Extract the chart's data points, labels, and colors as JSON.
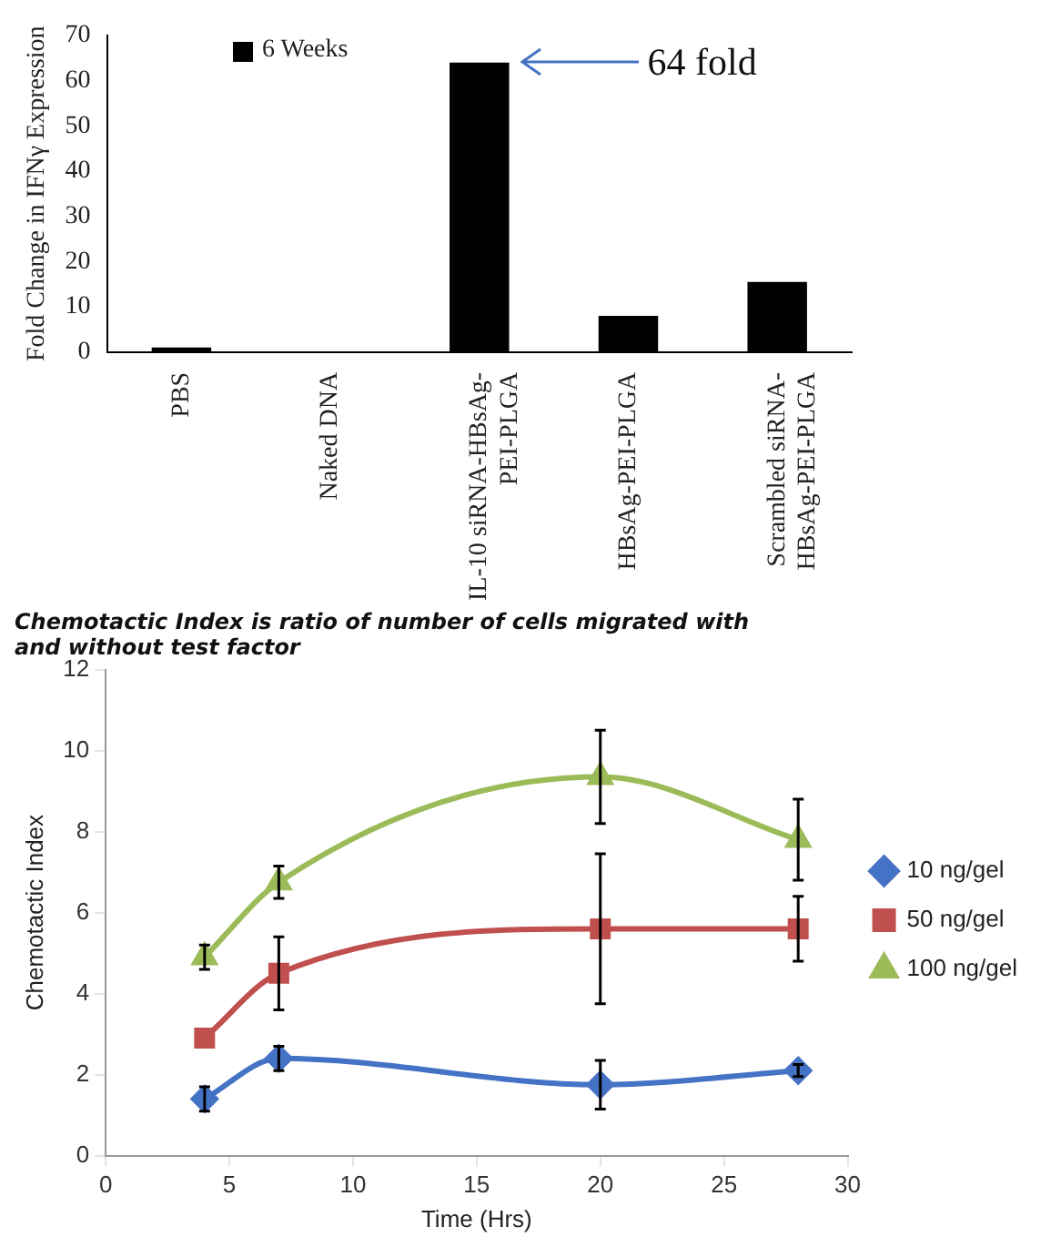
{
  "chart_data": [
    {
      "type": "bar",
      "categories": [
        "PBS",
        "Naked DNA",
        "IL-10 siRNA-HBsAg-PEI-PLGA",
        "HBsAg-PEI-PLGA",
        "Scrambled siRNA-HBsAg-PEI-PLGA"
      ],
      "ylabel": "Fold Change in IFNγ Expression",
      "series": [
        {
          "name": "6 Weeks",
          "color": "#000000",
          "values": [
            1,
            0,
            64,
            8,
            15.5
          ]
        }
      ],
      "ylim": [
        0,
        70
      ],
      "yticks": [
        0,
        10,
        20,
        30,
        40,
        50,
        60,
        70
      ],
      "grid": false,
      "legend": "top left",
      "annotations": [
        "64 fold"
      ]
    },
    {
      "type": "line",
      "title": "Chemotactic Index is ratio of number of cells migrated with and without test factor",
      "xlabel": "Time (Hrs)",
      "ylabel": "Chemotactic Index",
      "series": [
        {
          "name": "10 ng/gel",
          "color": "#4472c4",
          "marker": "diamond",
          "x": [
            4,
            7,
            20,
            28
          ],
          "values": [
            1.4,
            2.4,
            1.75,
            2.1
          ],
          "errors": [
            0.3,
            0.3,
            0.6,
            0.15
          ]
        },
        {
          "name": "50 ng/gel",
          "color": "#c0504d",
          "marker": "square",
          "x": [
            4,
            7,
            20,
            28
          ],
          "values": [
            2.9,
            4.5,
            5.6,
            5.6
          ],
          "errors": [
            null,
            0.9,
            1.85,
            0.8
          ]
        },
        {
          "name": "100 ng/gel",
          "color": "#9bbb59",
          "marker": "triangle",
          "x": [
            4,
            7,
            20,
            28
          ],
          "values": [
            4.9,
            6.75,
            9.35,
            7.8
          ],
          "errors": [
            0.3,
            0.4,
            1.15,
            1.0
          ]
        }
      ],
      "xlim": [
        0,
        30
      ],
      "xticks": [
        0,
        5,
        10,
        15,
        20,
        25,
        30
      ],
      "ylim": [
        0,
        12
      ],
      "yticks": [
        0,
        2,
        4,
        6,
        8,
        10,
        12
      ],
      "grid": false,
      "legend": "right",
      "line_style": "solid"
    }
  ]
}
